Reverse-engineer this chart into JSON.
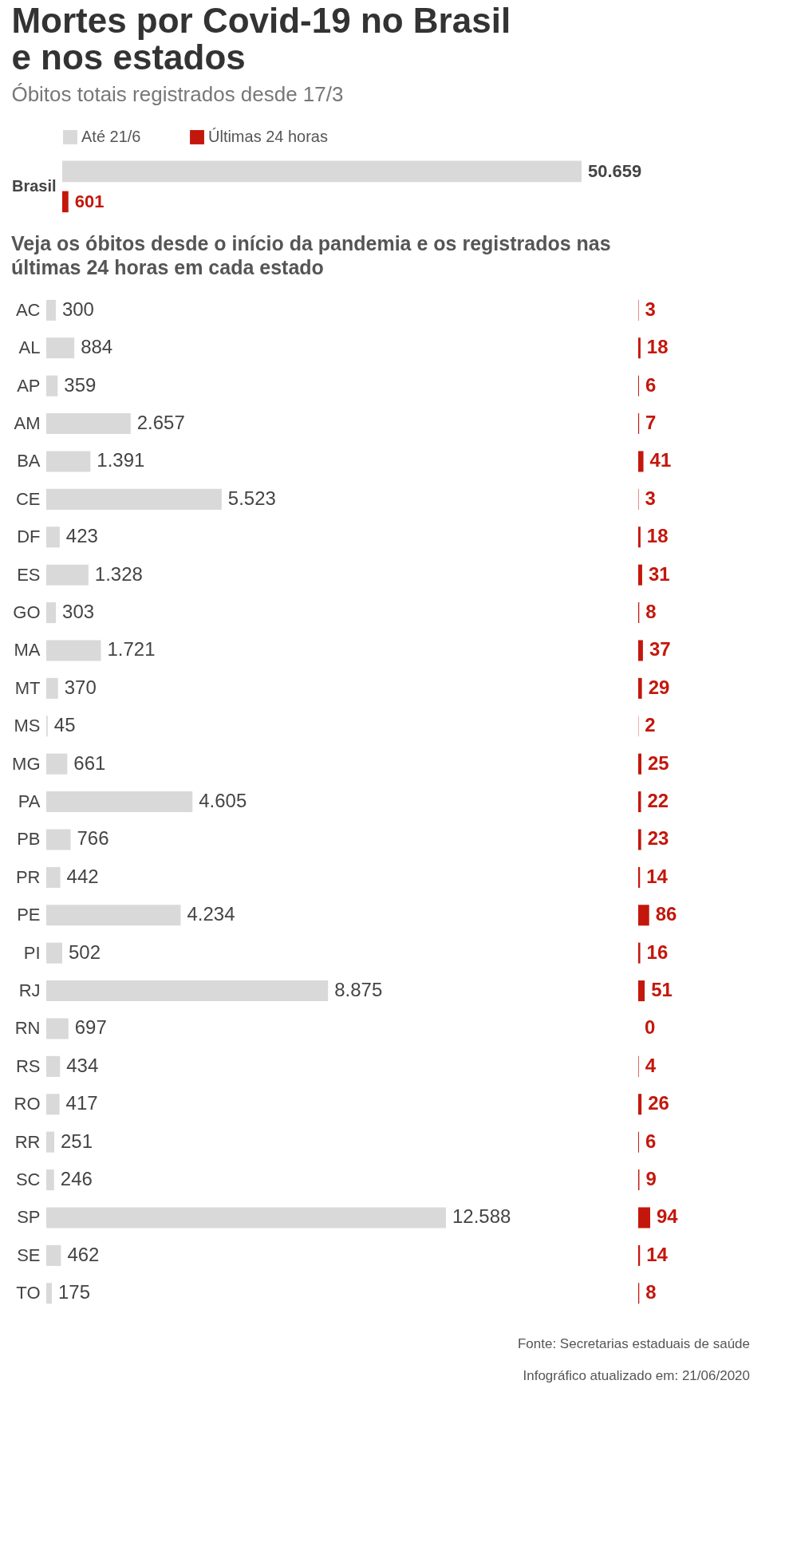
{
  "chart_data": [
    {
      "type": "bar",
      "orientation": "horizontal",
      "title": "Mortes por Covid-19 no Brasil e nos estados",
      "subtitle": "Óbitos totais registrados desde 17/3",
      "categories": [
        "Brasil"
      ],
      "legend": "top left",
      "tick_labels": "y",
      "series": [
        {
          "name": "Até 21/6",
          "color": "#d9d9d9",
          "values": [
            50659
          ],
          "value_labels": [
            "50.659"
          ]
        },
        {
          "name": "Últimas 24 horas",
          "color": "#c4170c",
          "values": [
            601
          ],
          "value_labels": [
            "601"
          ]
        }
      ]
    },
    {
      "type": "bar",
      "orientation": "horizontal",
      "title": "Veja os óbitos desde o início da pandemia e os registrados nas últimas 24 horas em cada estado",
      "categories": [
        "AC",
        "AL",
        "AP",
        "AM",
        "BA",
        "CE",
        "DF",
        "ES",
        "GO",
        "MA",
        "MT",
        "MS",
        "MG",
        "PA",
        "PB",
        "PR",
        "PE",
        "PI",
        "RJ",
        "RN",
        "RS",
        "RO",
        "RR",
        "SC",
        "SP",
        "SE",
        "TO"
      ],
      "tick_labels": "y",
      "color": "#d9d9d9",
      "values": [
        300,
        884,
        359,
        2657,
        1391,
        5523,
        423,
        1328,
        303,
        1721,
        370,
        45,
        661,
        4605,
        766,
        442,
        4234,
        502,
        8875,
        697,
        434,
        417,
        251,
        246,
        12588,
        462,
        175
      ],
      "value_labels": [
        "300",
        "884",
        "359",
        "2.657",
        "1.391",
        "5.523",
        "423",
        "1.328",
        "303",
        "1.721",
        "370",
        "45",
        "661",
        "4.605",
        "766",
        "442",
        "4.234",
        "502",
        "8.875",
        "697",
        "434",
        "417",
        "251",
        "246",
        "12.588",
        "462",
        "175"
      ]
    },
    {
      "type": "bar",
      "orientation": "horizontal",
      "categories": [
        null,
        null,
        null,
        null,
        null,
        null,
        null,
        null,
        null,
        null,
        null,
        null,
        null,
        null,
        null,
        null,
        null,
        null,
        null,
        null,
        null,
        null,
        null,
        null,
        null,
        null,
        null
      ],
      "tick_labels": false,
      "color": "#c4170c",
      "data_labels": true,
      "values": [
        3,
        18,
        6,
        7,
        41,
        3,
        18,
        31,
        8,
        37,
        29,
        2,
        25,
        22,
        23,
        14,
        86,
        16,
        51,
        0,
        4,
        26,
        6,
        9,
        94,
        14,
        8
      ],
      "annotations": [
        "Fonte: Secretarias estaduais de saúde",
        "Infográfico atualizado em: 21/06/2020"
      ]
    }
  ]
}
